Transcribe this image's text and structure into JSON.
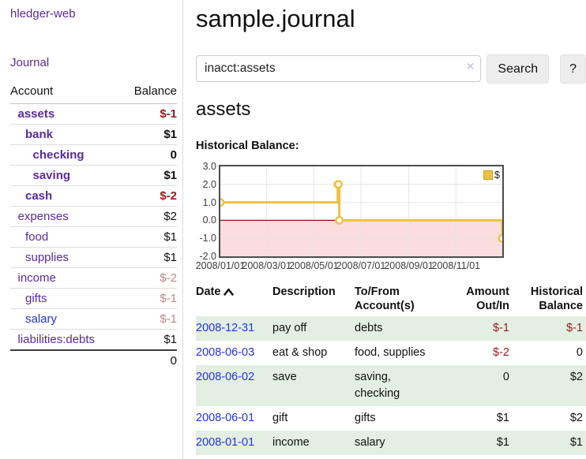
{
  "app": {
    "brand": "hledger-web",
    "nav_journal": "Journal"
  },
  "sidebar": {
    "account_header": "Account",
    "balance_header": "Balance",
    "accounts": [
      {
        "name": "assets",
        "indent": 1,
        "balance": "$-1",
        "bold": true,
        "neg": "strong"
      },
      {
        "name": "bank",
        "indent": 2,
        "balance": "$1",
        "bold": true
      },
      {
        "name": "checking",
        "indent": 3,
        "balance": "0",
        "bold": true
      },
      {
        "name": "saving",
        "indent": 3,
        "balance": "$1",
        "bold": true
      },
      {
        "name": "cash",
        "indent": 2,
        "balance": "$-2",
        "bold": true,
        "neg": "strong"
      },
      {
        "name": "expenses",
        "indent": 1,
        "balance": "$2"
      },
      {
        "name": "food",
        "indent": 2,
        "balance": "$1"
      },
      {
        "name": "supplies",
        "indent": 2,
        "balance": "$1"
      },
      {
        "name": "income",
        "indent": 1,
        "balance": "$-2",
        "neg": "muted"
      },
      {
        "name": "gifts",
        "indent": 2,
        "balance": "$-1",
        "neg": "muted"
      },
      {
        "name": "salary",
        "indent": 2,
        "balance": "$-1",
        "neg": "muted",
        "link": "blue"
      },
      {
        "name": "liabilities:debts",
        "indent": 1,
        "balance": "$1"
      }
    ],
    "total": "0"
  },
  "header": {
    "title": "sample.journal"
  },
  "search": {
    "value": "inacct:assets",
    "clear_icon": "×",
    "button_label": "Search",
    "help_label": "?"
  },
  "account_page": {
    "title": "assets",
    "chart_label": "Historical Balance:"
  },
  "chart_data": {
    "type": "line",
    "step": true,
    "title": "Historical Balance",
    "xrange": [
      "2008-01-01",
      "2008-12-31"
    ],
    "ylim": [
      -2,
      3
    ],
    "yticks": [
      "3.0",
      "2.0",
      "1.0",
      "0.0",
      "-1.0",
      "-2.0"
    ],
    "xticks": [
      {
        "label": "2008/01/01",
        "date": "2008-01-01"
      },
      {
        "label": "2008/03/01",
        "date": "2008-03-01"
      },
      {
        "label": "2008/05/01",
        "date": "2008-05-01"
      },
      {
        "label": "2008/07/01",
        "date": "2008-07-01"
      },
      {
        "label": "2008/09/01",
        "date": "2008-09-01"
      },
      {
        "label": "2008/11/01",
        "date": "2008-11-01"
      }
    ],
    "series": [
      {
        "name": "$",
        "color": "#edc240",
        "points": [
          [
            "2008-01-01",
            1
          ],
          [
            "2008-06-01",
            2
          ],
          [
            "2008-06-02",
            2
          ],
          [
            "2008-06-03",
            0
          ],
          [
            "2008-12-31",
            -1
          ]
        ]
      }
    ],
    "legend_position": "top-right",
    "grid": true,
    "colors": {
      "negative_fill": "#fbdddd",
      "zero_line": "#8b1414",
      "grid": "#e4e4e4",
      "border": "#4c4c4c"
    }
  },
  "register": {
    "columns": [
      {
        "label": "Date"
      },
      {
        "label": "Description"
      },
      {
        "label": "To/From Account(s)"
      },
      {
        "label": "Amount Out/In"
      },
      {
        "label": "Historical Balance"
      }
    ],
    "rows": [
      {
        "date": "2008-12-31",
        "description": "pay off",
        "accounts": "debts",
        "amount": "$-1",
        "balance": "$-1"
      },
      {
        "date": "2008-06-03",
        "description": "eat & shop",
        "accounts": "food, supplies",
        "amount": "$-2",
        "balance": "0"
      },
      {
        "date": "2008-06-02",
        "description": "save",
        "accounts": "saving, checking",
        "amount": "0",
        "balance": "$2"
      },
      {
        "date": "2008-06-01",
        "description": "gift",
        "accounts": "gifts",
        "amount": "$1",
        "balance": "$2"
      },
      {
        "date": "2008-01-01",
        "description": "income",
        "accounts": "salary",
        "amount": "$1",
        "balance": "$1"
      }
    ]
  },
  "colors": {
    "link_purple": "#5b2a9e",
    "link_blue": "#2433dd",
    "negative_strong": "#9d1a1a",
    "negative_muted": "#b98989",
    "row_stripe_green": "#e2efe2"
  }
}
